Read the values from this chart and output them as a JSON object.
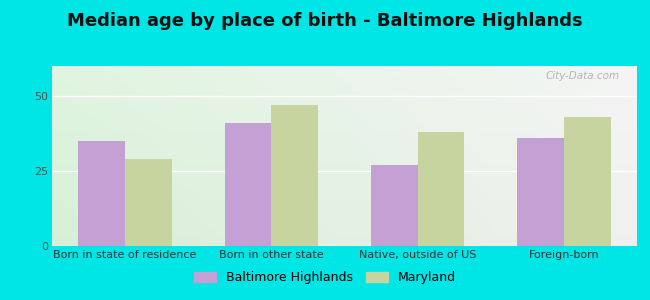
{
  "title": "Median age by place of birth - Baltimore Highlands",
  "categories": [
    "Born in state of residence",
    "Born in other state",
    "Native, outside of US",
    "Foreign-born"
  ],
  "baltimore_values": [
    35,
    41,
    27,
    36
  ],
  "maryland_values": [
    29,
    47,
    38,
    43
  ],
  "bar_color_baltimore": "#c4a0d4",
  "bar_color_maryland": "#c8d4a0",
  "background_outer": "#00e5e5",
  "ylim": [
    0,
    60
  ],
  "yticks": [
    0,
    25,
    50
  ],
  "legend_label_1": "Baltimore Highlands",
  "legend_label_2": "Maryland",
  "title_fontsize": 13,
  "tick_fontsize": 8,
  "legend_fontsize": 9,
  "bar_width": 0.32,
  "watermark_text": "City-Data.com"
}
